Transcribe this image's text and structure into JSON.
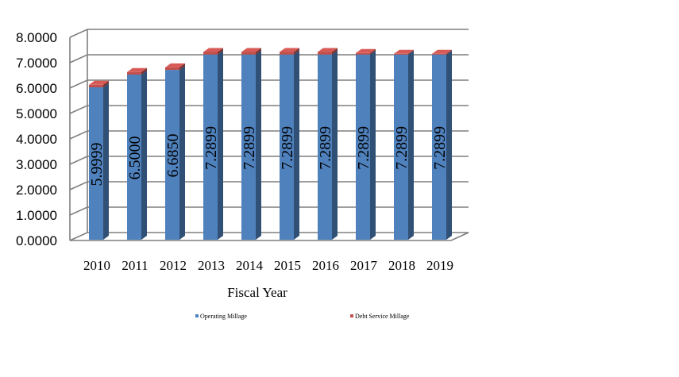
{
  "chart_data": {
    "type": "bar",
    "stacked": true,
    "three_d": true,
    "categories": [
      "2010",
      "2011",
      "2012",
      "2013",
      "2014",
      "2015",
      "2016",
      "2017",
      "2018",
      "2019"
    ],
    "series": [
      {
        "name": "Operating Millage",
        "color": "#4f81bd",
        "values": [
          5.9999,
          6.5,
          6.685,
          7.2899,
          7.2899,
          7.2899,
          7.2899,
          7.2899,
          7.2899,
          7.2899
        ]
      },
      {
        "name": "Debt Service Millage",
        "color": "#c0504d",
        "values": [
          0.1,
          0.1,
          0.1,
          0.1,
          0.1,
          0.1,
          0.1,
          0.06,
          0.03,
          0.03
        ]
      }
    ],
    "data_labels": [
      "5.9999",
      "6.5000",
      "6.6850",
      "7.2899",
      "7.2899",
      "7.2899",
      "7.2899",
      "7.2899",
      "7.2899",
      "7.2899"
    ],
    "y_ticks": [
      "0.0000",
      "1.0000",
      "2.0000",
      "3.0000",
      "4.0000",
      "5.0000",
      "6.0000",
      "7.0000",
      "8.0000"
    ],
    "ylim": [
      0,
      8
    ],
    "xlabel": "Fiscal Year",
    "ylabel": "",
    "grid": true,
    "legend_position": "bottom"
  }
}
